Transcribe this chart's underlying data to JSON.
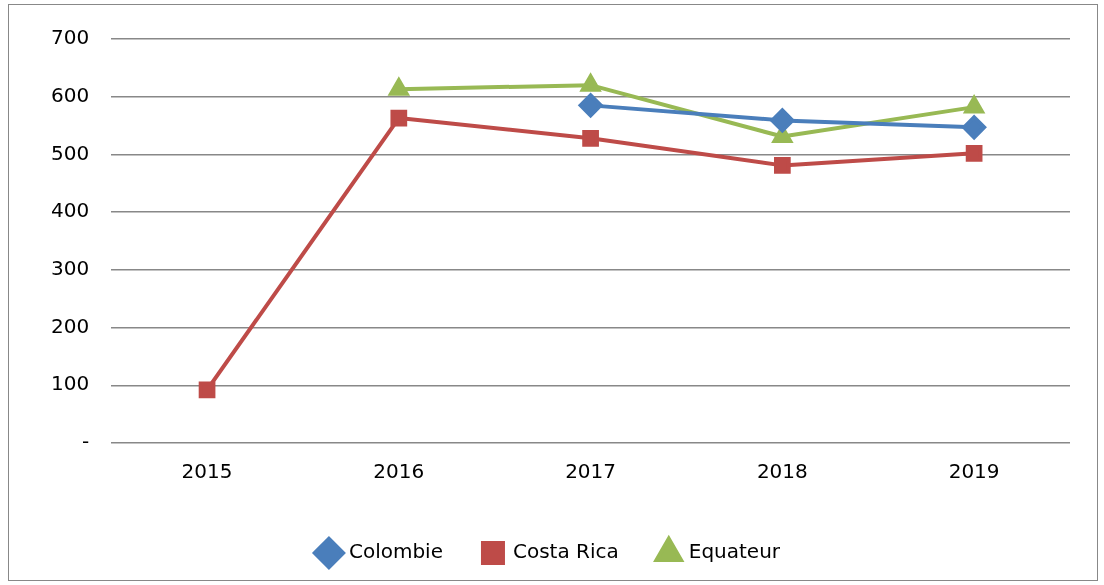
{
  "chart_data": {
    "type": "line",
    "categories": [
      "2015",
      "2016",
      "2017",
      "2018",
      "2019"
    ],
    "series": [
      {
        "name": "Colombie",
        "color": "#4a7ebb",
        "marker": "diamond",
        "values": [
          null,
          null,
          585,
          559,
          547
        ]
      },
      {
        "name": "Costa Rica",
        "color": "#be4b48",
        "marker": "square",
        "values": [
          92,
          563,
          528,
          481,
          502
        ]
      },
      {
        "name": "Equateur",
        "color": "#98b954",
        "marker": "triangle",
        "values": [
          null,
          613,
          620,
          531,
          582
        ]
      }
    ],
    "ylim": [
      0,
      700
    ],
    "yticks": [
      {
        "value": 0,
        "label": "-"
      },
      100,
      200,
      300,
      400,
      500,
      600,
      700
    ],
    "grid": "y",
    "legend": "bottom",
    "line_style": "solid"
  }
}
